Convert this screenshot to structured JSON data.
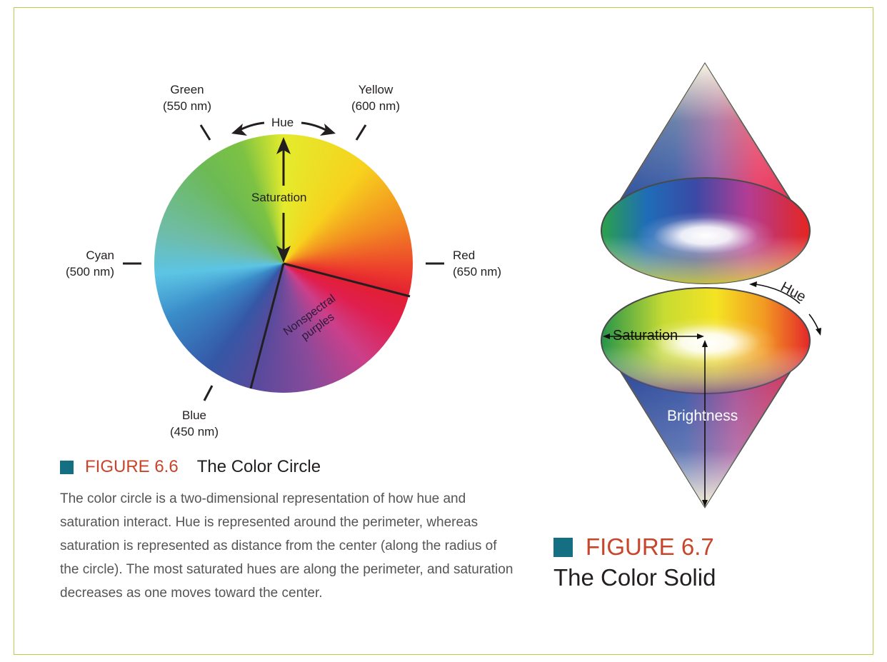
{
  "circle": {
    "label_green": "Green",
    "label_green_nm": "(550 nm)",
    "label_yellow": "Yellow",
    "label_yellow_nm": "(600 nm)",
    "label_cyan": "Cyan",
    "label_cyan_nm": "(500 nm)",
    "label_red": "Red",
    "label_red_nm": "(650 nm)",
    "label_blue": "Blue",
    "label_blue_nm": "(450 nm)",
    "label_hue": "Hue",
    "label_saturation": "Saturation",
    "label_nonspectral_1": "Nonspectral",
    "label_nonspectral_2": "purples"
  },
  "caption_66": {
    "number": "FIGURE 6.6",
    "title": "The Color Circle",
    "body": "The color circle is a two-dimensional representation of how hue and saturation interact. Hue is represented around the perimeter, whereas saturation is represented as distance from the center (along the radius of the circle). The most saturated hues are along the perimeter, and saturation decreases as one moves toward the center."
  },
  "solid": {
    "label_hue": "Hue",
    "label_saturation": "Saturation",
    "label_brightness": "Brightness"
  },
  "caption_67": {
    "number": "FIGURE 6.7",
    "title": "The Color Solid"
  },
  "colors": {
    "frame": "#b7cf46",
    "accent_square": "#156f82",
    "figure_number": "#c8452b"
  }
}
